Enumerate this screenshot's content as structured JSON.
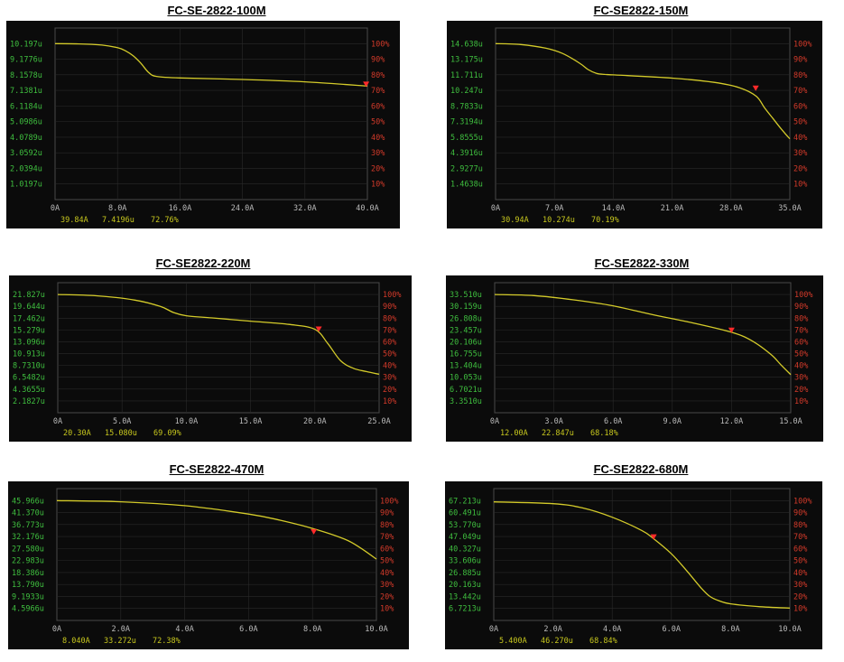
{
  "colors": {
    "background": "#0b0b0b",
    "curve": "#d4cb2a",
    "left_axis_text": "#3fbf3f",
    "right_axis_text": "#d23a2a",
    "bottom_axis_text": "#bbbbbb",
    "readout_text": "#c8c81e",
    "grid": "#2a2a2a",
    "marker": "#ff2a2a"
  },
  "chart_data": [
    {
      "type": "line",
      "title": "FC-SE-2822-100M",
      "x_ticks": [
        "0A",
        "8.0A",
        "16.0A",
        "24.0A",
        "32.0A",
        "40.0A"
      ],
      "xlim": [
        0,
        40
      ],
      "ylim": [
        0,
        11.2167
      ],
      "y_ticks_left": [
        "10.197u",
        "9.1776u",
        "8.1578u",
        "7.1381u",
        "6.1184u",
        "5.0986u",
        "4.0789u",
        "3.0592u",
        "2.0394u",
        "1.0197u"
      ],
      "y_ticks_right": [
        "100%",
        "90%",
        "80%",
        "70%",
        "60%",
        "50%",
        "40%",
        "30%",
        "20%",
        "10%"
      ],
      "series": [
        {
          "x": [
            0,
            3,
            6,
            8,
            9,
            10,
            11,
            12,
            13,
            16,
            24,
            32,
            40
          ],
          "y": [
            10.197,
            10.18,
            10.1,
            9.93,
            9.73,
            9.4,
            8.9,
            8.3,
            8.05,
            7.95,
            7.85,
            7.7,
            7.42
          ]
        }
      ],
      "marker": {
        "x": 39.84,
        "y": 7.4196
      },
      "readout": [
        "39.84A",
        "7.4196u",
        "72.76%"
      ]
    },
    {
      "type": "line",
      "title": "FC-SE2822-150M",
      "x_ticks": [
        "0A",
        "7.0A",
        "14.0A",
        "21.0A",
        "28.0A",
        "35.0A"
      ],
      "xlim": [
        0,
        35
      ],
      "ylim": [
        0,
        16.1018
      ],
      "y_ticks_left": [
        "14.638u",
        "13.175u",
        "11.711u",
        "10.247u",
        "8.7833u",
        "7.3194u",
        "5.8555u",
        "4.3916u",
        "2.9277u",
        "1.4638u"
      ],
      "y_ticks_right": [
        "100%",
        "90%",
        "80%",
        "70%",
        "60%",
        "50%",
        "40%",
        "30%",
        "20%",
        "10%"
      ],
      "series": [
        {
          "x": [
            0,
            3,
            6,
            8,
            10,
            11,
            12,
            13,
            14,
            21,
            26,
            29,
            31,
            32,
            33,
            34,
            35
          ],
          "y": [
            14.638,
            14.55,
            14.2,
            13.7,
            12.8,
            12.2,
            11.85,
            11.75,
            11.7,
            11.4,
            11.0,
            10.5,
            9.7,
            8.6,
            7.6,
            6.6,
            5.7
          ]
        }
      ],
      "marker": {
        "x": 30.94,
        "y": 10.274
      },
      "readout": [
        "30.94A",
        "10.274u",
        "70.19%"
      ]
    },
    {
      "type": "line",
      "title": "FC-SE2822-220M",
      "x_ticks": [
        "0A",
        "5.0A",
        "10.0A",
        "15.0A",
        "20.0A",
        "25.0A"
      ],
      "xlim": [
        0,
        25
      ],
      "ylim": [
        0,
        24.0097
      ],
      "y_ticks_left": [
        "21.827u",
        "19.644u",
        "17.462u",
        "15.279u",
        "13.096u",
        "10.913u",
        "8.7310u",
        "6.5482u",
        "4.3655u",
        "2.1827u"
      ],
      "y_ticks_right": [
        "100%",
        "90%",
        "80%",
        "70%",
        "60%",
        "50%",
        "40%",
        "30%",
        "20%",
        "10%"
      ],
      "series": [
        {
          "x": [
            0,
            3,
            6,
            8,
            9,
            10,
            12,
            15,
            18,
            20,
            21,
            22,
            23,
            24,
            25
          ],
          "y": [
            21.827,
            21.6,
            20.8,
            19.6,
            18.5,
            17.9,
            17.5,
            16.9,
            16.3,
            15.4,
            12.8,
            9.6,
            8.2,
            7.6,
            7.1
          ]
        }
      ],
      "marker": {
        "x": 20.3,
        "y": 15.08
      },
      "readout": [
        "20.30A",
        "15.080u",
        "69.09%"
      ]
    },
    {
      "type": "line",
      "title": "FC-SE2822-330M",
      "x_ticks": [
        "0A",
        "3.0A",
        "6.0A",
        "9.0A",
        "12.0A",
        "15.0A"
      ],
      "xlim": [
        0,
        15
      ],
      "ylim": [
        0,
        36.861
      ],
      "y_ticks_left": [
        "33.510u",
        "30.159u",
        "26.808u",
        "23.457u",
        "20.106u",
        "16.755u",
        "13.404u",
        "10.053u",
        "6.7021u",
        "3.3510u"
      ],
      "y_ticks_right": [
        "100%",
        "90%",
        "80%",
        "70%",
        "60%",
        "50%",
        "40%",
        "30%",
        "20%",
        "10%"
      ],
      "series": [
        {
          "x": [
            0,
            2,
            4,
            6,
            8,
            10,
            12,
            13,
            14,
            14.5,
            15
          ],
          "y": [
            33.51,
            33.2,
            32.0,
            30.3,
            27.8,
            25.5,
            22.8,
            20.5,
            16.5,
            13.6,
            10.8
          ]
        }
      ],
      "marker": {
        "x": 12.0,
        "y": 22.847
      },
      "readout": [
        "12.00A",
        "22.847u",
        "68.18%"
      ]
    },
    {
      "type": "line",
      "title": "FC-SE2822-470M",
      "x_ticks": [
        "0A",
        "2.0A",
        "4.0A",
        "6.0A",
        "8.0A",
        "10.0A"
      ],
      "xlim": [
        0,
        10
      ],
      "ylim": [
        0,
        50.5626
      ],
      "y_ticks_left": [
        "45.966u",
        "41.370u",
        "36.773u",
        "32.176u",
        "27.580u",
        "22.983u",
        "18.386u",
        "13.790u",
        "9.1933u",
        "4.5966u"
      ],
      "y_ticks_right": [
        "100%",
        "90%",
        "80%",
        "70%",
        "60%",
        "50%",
        "40%",
        "30%",
        "20%",
        "10%"
      ],
      "series": [
        {
          "x": [
            0,
            2,
            4,
            6,
            7,
            8,
            9,
            9.5,
            10
          ],
          "y": [
            45.966,
            45.5,
            44.0,
            40.8,
            38.4,
            35.3,
            31.2,
            27.8,
            23.5
          ]
        }
      ],
      "marker": {
        "x": 8.04,
        "y": 33.272
      },
      "readout": [
        "8.040A",
        "33.272u",
        "72.38%"
      ]
    },
    {
      "type": "line",
      "title": "FC-SE2822-680M",
      "x_ticks": [
        "0A",
        "2.0A",
        "4.0A",
        "6.0A",
        "8.0A",
        "10.0A"
      ],
      "xlim": [
        0,
        10
      ],
      "ylim": [
        0,
        74.7343
      ],
      "y_ticks_left": [
        "67.213u",
        "60.491u",
        "53.770u",
        "47.049u",
        "40.327u",
        "33.606u",
        "26.885u",
        "20.163u",
        "13.442u",
        "6.7213u"
      ],
      "y_ticks_right": [
        "100%",
        "90%",
        "80%",
        "70%",
        "60%",
        "50%",
        "40%",
        "30%",
        "20%",
        "10%"
      ],
      "series": [
        {
          "x": [
            0,
            2,
            3,
            4,
            5,
            5.4,
            6,
            6.5,
            7,
            7.3,
            7.6,
            8,
            9,
            10
          ],
          "y": [
            67.213,
            66.2,
            63.8,
            58.5,
            51.0,
            46.3,
            37.8,
            28.5,
            18.5,
            13.6,
            11.2,
            9.4,
            7.8,
            7.0
          ]
        }
      ],
      "marker": {
        "x": 5.4,
        "y": 46.27
      },
      "readout": [
        "5.400A",
        "46.270u",
        "68.84%"
      ]
    }
  ]
}
